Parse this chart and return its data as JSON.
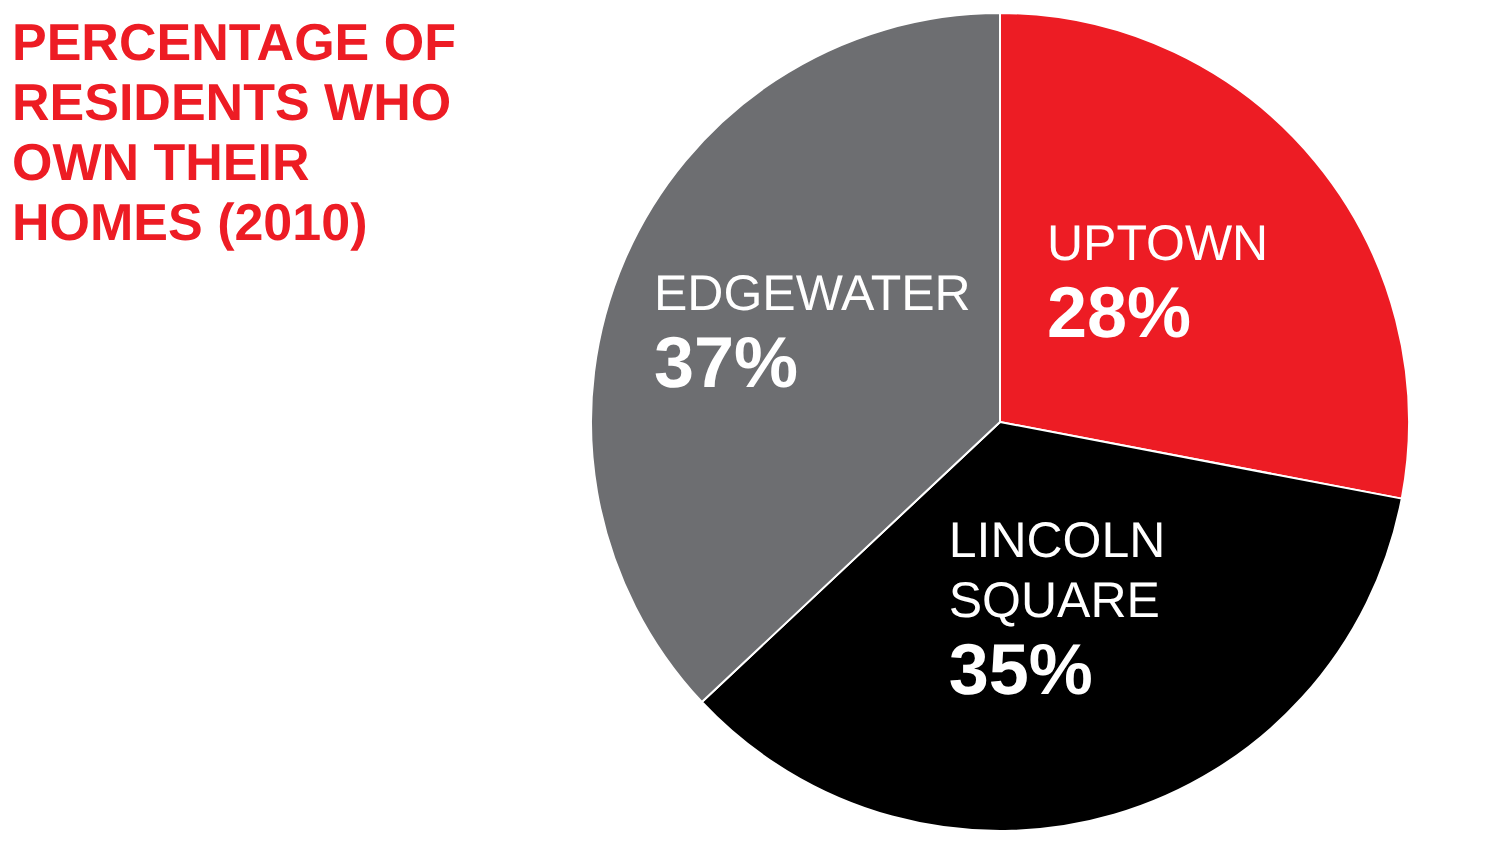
{
  "chart_data": {
    "type": "pie",
    "title": "PERCENTAGE OF RESIDENTS WHO OWN THEIR HOMES (2010)",
    "categories": [
      "UPTOWN",
      "LINCOLN SQUARE",
      "EDGEWATER"
    ],
    "values": [
      28,
      35,
      37
    ],
    "value_labels": [
      "28%",
      "35%",
      "37%"
    ],
    "colors": [
      "#ed1c24",
      "#000000",
      "#6d6e71"
    ],
    "legend": false
  }
}
